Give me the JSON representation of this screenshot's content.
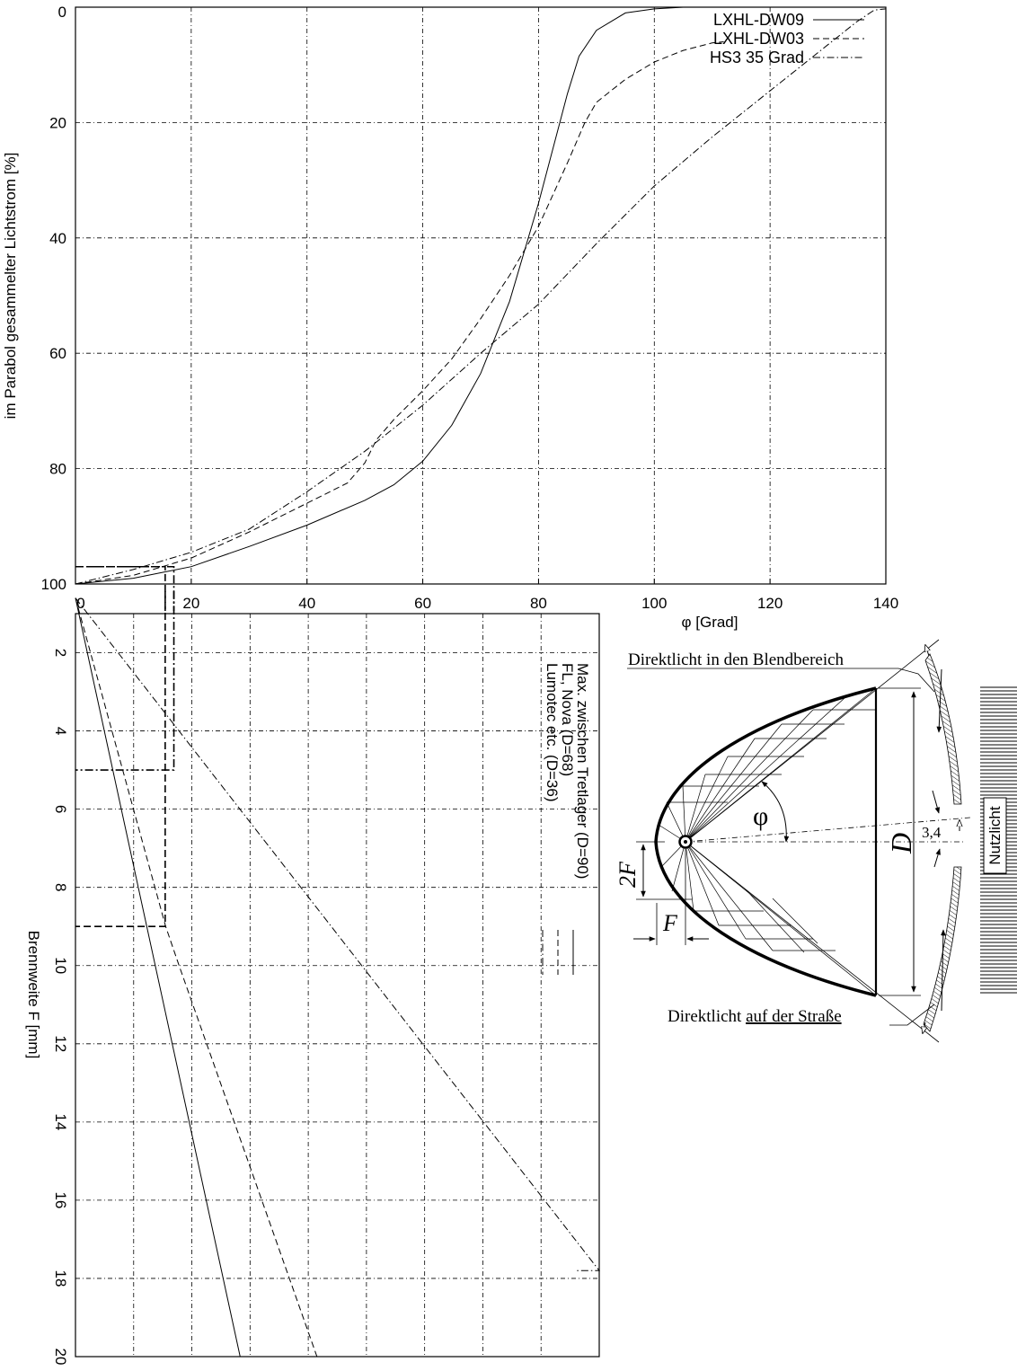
{
  "chart_data": [
    {
      "type": "line",
      "xlabel": "φ [Grad]",
      "ylabel": "im Parabol gesammelter Lichtstrom [%]",
      "xlim": [
        0,
        140
      ],
      "ylim": [
        0,
        100
      ],
      "y_axis_inverted": true,
      "grid": true,
      "legend_position": "top-right",
      "x_ticks": [
        "0",
        "20",
        "40",
        "60",
        "80",
        "100",
        "120",
        "140"
      ],
      "y_ticks": [
        "0",
        "20",
        "40",
        "60",
        "80",
        "100"
      ],
      "series": [
        {
          "name": "LXHL-DW09",
          "style": "solid",
          "x": [
            0,
            10,
            20,
            30,
            40,
            50,
            55,
            60,
            65,
            70,
            75,
            80,
            85,
            87,
            90,
            95,
            100,
            105,
            110,
            112
          ],
          "y": [
            100,
            99,
            97,
            93.5,
            89.8,
            85.5,
            82.8,
            78.7,
            72.5,
            63.5,
            51,
            34,
            15,
            8.5,
            4,
            1,
            0.3,
            0,
            0,
            0
          ]
        },
        {
          "name": "LXHL-DW03",
          "style": "dashed",
          "x": [
            0,
            10,
            20,
            30,
            40,
            47,
            50,
            52,
            55,
            60,
            65,
            70,
            75,
            80,
            85,
            88,
            90,
            95,
            100,
            105,
            110,
            112
          ],
          "y": [
            100,
            98.5,
            95.5,
            91,
            86,
            82.5,
            79,
            75,
            71.5,
            66.5,
            61,
            54,
            46.5,
            38,
            27,
            20,
            16.5,
            12.5,
            9.5,
            7.5,
            6.2,
            6
          ]
        },
        {
          "name": "HS3 35 Grad",
          "style": "dashdot",
          "x": [
            0,
            10,
            20,
            30,
            40,
            50,
            60,
            70,
            80,
            90,
            100,
            110,
            120,
            130,
            135,
            138,
            140
          ],
          "y": [
            100,
            97.5,
            94.5,
            90.5,
            84,
            77,
            69,
            60,
            51.5,
            41,
            31,
            22.5,
            14.5,
            6.5,
            2.5,
            0.5,
            0.3
          ]
        }
      ],
      "markers": [
        {
          "style": "dash-dot",
          "y": 97,
          "x": 17
        },
        {
          "style": "dashed",
          "y": 97,
          "x": 15.5
        }
      ]
    },
    {
      "type": "line",
      "ylabel": "Brennweite F [mm]",
      "xlim": [
        0,
        90
      ],
      "ylim": [
        1,
        20
      ],
      "y_axis_inverted": true,
      "grid": true,
      "legend_position": "top-right",
      "y_ticks": [
        "2",
        "4",
        "6",
        "8",
        "10",
        "12",
        "14",
        "16",
        "18",
        "20"
      ],
      "series": [
        {
          "name": "Max. zwischen Tretlager (D=90)",
          "style": "solid",
          "x": [
            0,
            28.3
          ],
          "y": [
            0.6,
            20
          ]
        },
        {
          "name": "FL, Nova (D=68)",
          "style": "dashed",
          "x": [
            0,
            15.5,
            17.8,
            41.5
          ],
          "y": [
            0.6,
            9,
            10,
            20
          ]
        },
        {
          "name": "Lumotec etc. (D=36)",
          "style": "dashdot",
          "x": [
            0,
            90,
            86
          ],
          "y": [
            0.6,
            17.8,
            17.8
          ]
        }
      ],
      "markers": [
        {
          "style": "dash-dot",
          "x": 17,
          "y": 5
        },
        {
          "style": "dashed",
          "x": 15.5,
          "y": 9
        }
      ]
    }
  ],
  "diagram": {
    "direct_glare": "Direktlicht in den Blendbereich",
    "direct_road_prefix": "Direktlicht ",
    "direct_road_underlined": "auf der Straße",
    "phi": "φ",
    "D": "D",
    "two_f": "2F",
    "f": "F",
    "angle_value": "3,4",
    "useful_light": "Nutzlicht"
  }
}
